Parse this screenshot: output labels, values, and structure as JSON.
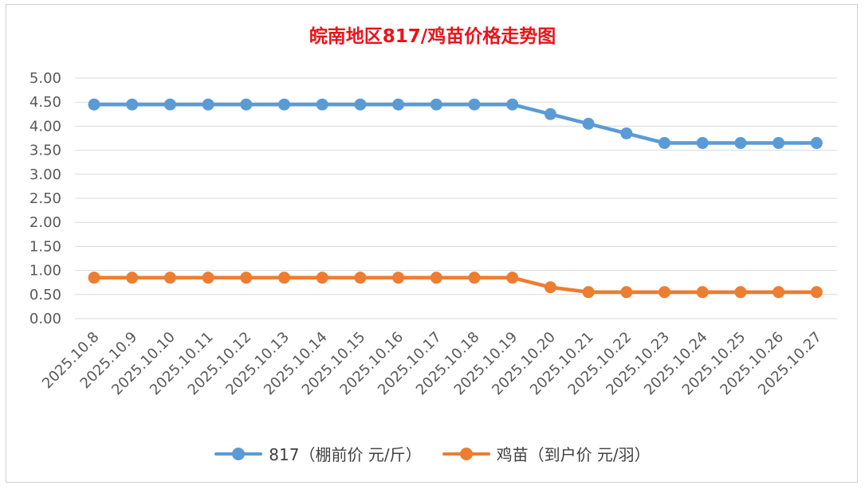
{
  "chart_data": {
    "type": "line",
    "title": "皖南地区817/鸡苗价格走势图",
    "categories": [
      "2025.10.8",
      "2025.10.9",
      "2025.10.10",
      "2025.10.11",
      "2025.10.12",
      "2025.10.13",
      "2025.10.14",
      "2025.10.15",
      "2025.10.16",
      "2025.10.17",
      "2025.10.18",
      "2025.10.19",
      "2025.10.20",
      "2025.10.21",
      "2025.10.22",
      "2025.10.23",
      "2025.10.24",
      "2025.10.25",
      "2025.10.26",
      "2025.10.27"
    ],
    "yticks": [
      "0.00",
      "0.50",
      "1.00",
      "1.50",
      "2.00",
      "2.50",
      "3.00",
      "3.50",
      "4.00",
      "4.50",
      "5.00"
    ],
    "ylim": [
      0,
      5
    ],
    "grid": true,
    "legend_position": "bottom",
    "series": [
      {
        "name": "817（棚前价 元/斤）",
        "color": "#5b9bd5",
        "values": [
          4.45,
          4.45,
          4.45,
          4.45,
          4.45,
          4.45,
          4.45,
          4.45,
          4.45,
          4.45,
          4.45,
          4.45,
          4.25,
          4.05,
          3.85,
          3.65,
          3.65,
          3.65,
          3.65,
          3.65
        ]
      },
      {
        "name": "鸡苗（到户价 元/羽）",
        "color": "#ed7d31",
        "values": [
          0.85,
          0.85,
          0.85,
          0.85,
          0.85,
          0.85,
          0.85,
          0.85,
          0.85,
          0.85,
          0.85,
          0.85,
          0.65,
          0.55,
          0.55,
          0.55,
          0.55,
          0.55,
          0.55,
          0.55
        ]
      }
    ]
  }
}
